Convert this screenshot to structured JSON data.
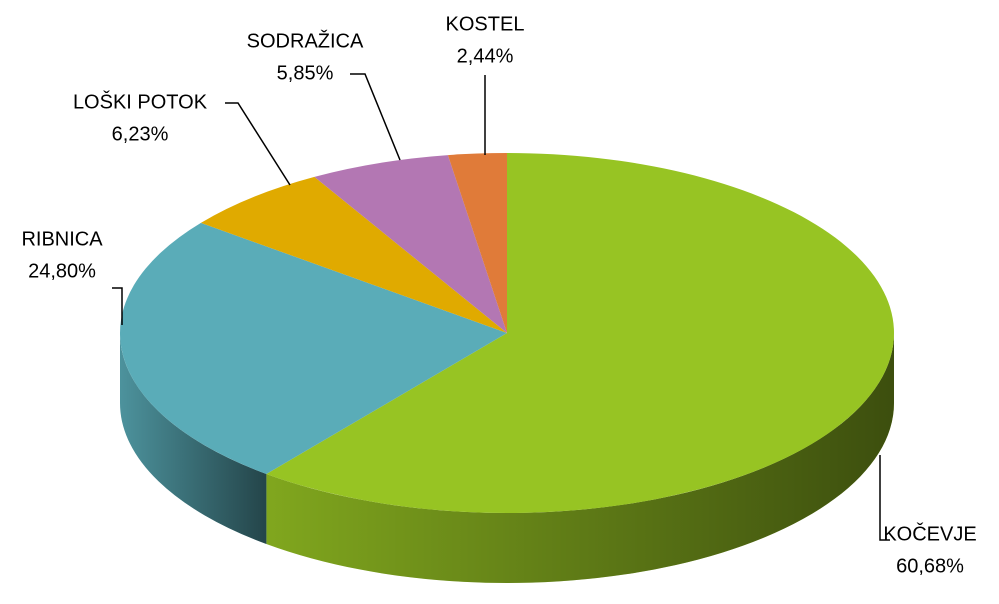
{
  "chart_data": {
    "type": "pie3d",
    "categories": [
      "KOČEVJE",
      "RIBNICA",
      "LOŠKI POTOK",
      "SODRAŽICA",
      "KOSTEL"
    ],
    "values": [
      60.68,
      24.8,
      6.23,
      5.85,
      2.44
    ],
    "value_labels": [
      "60,68%",
      "24,80%",
      "6,23%",
      "5,85%",
      "2,44%"
    ],
    "colors": [
      "#97c423",
      "#5aacb8",
      "#e0aa00",
      "#b377b3",
      "#e07b39"
    ]
  }
}
